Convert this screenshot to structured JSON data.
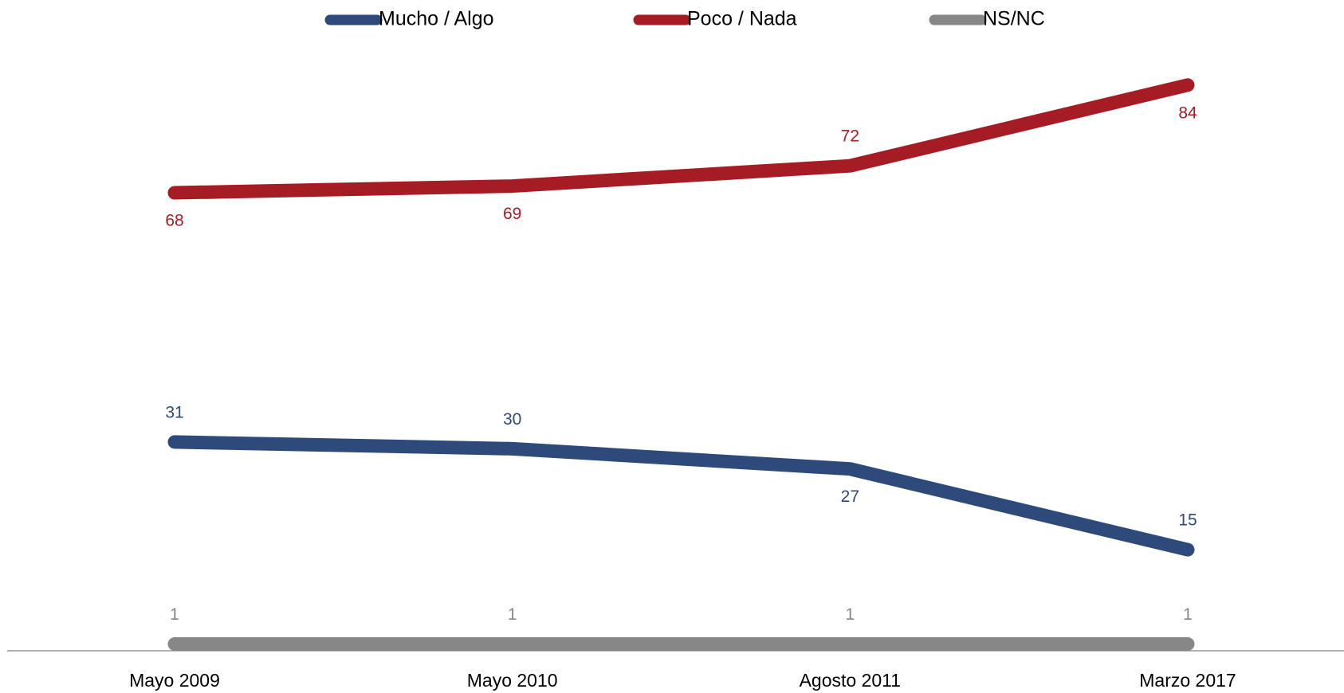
{
  "chart_data": {
    "type": "line",
    "categories": [
      "Mayo 2009",
      "Mayo 2010",
      "Agosto 2011",
      "Marzo 2017"
    ],
    "series": [
      {
        "name": "Mucho / Algo",
        "color": "#2e4a7a",
        "values": [
          31,
          30,
          27,
          15
        ]
      },
      {
        "name": "Poco / Nada",
        "color": "#a51c24",
        "values": [
          68,
          69,
          72,
          84
        ]
      },
      {
        "name": "NS/NC",
        "color": "#878787",
        "values": [
          1,
          1,
          1,
          1
        ]
      }
    ],
    "ylim": [
      0,
      90
    ],
    "legend": "top"
  }
}
